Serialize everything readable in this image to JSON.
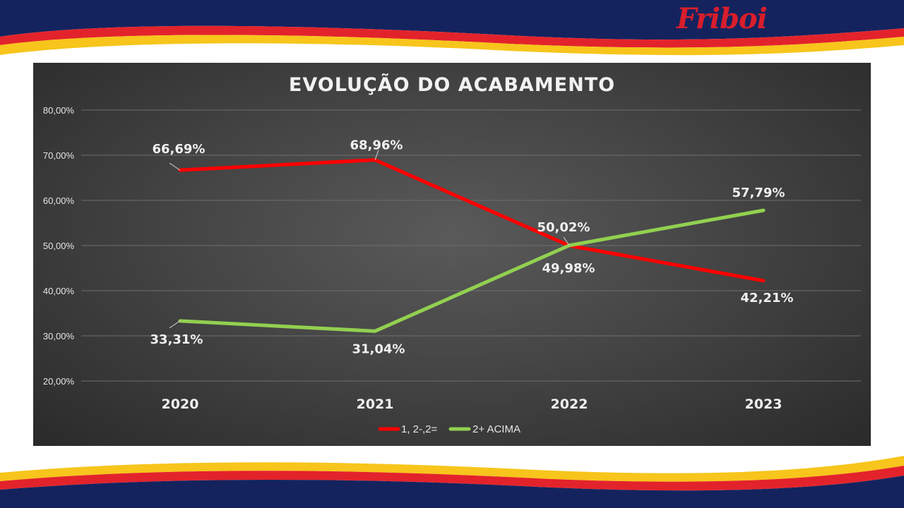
{
  "brand": {
    "name": "Friboi",
    "color": "#d81e2c"
  },
  "colors": {
    "navy": "#14235e",
    "red": "#e3232b",
    "yellow": "#f7c51b"
  },
  "chart_data": {
    "type": "line",
    "title": "EVOLUÇÃO DO ACABAMENTO",
    "categories": [
      "2020",
      "2021",
      "2022",
      "2023"
    ],
    "ylim": [
      20,
      80
    ],
    "yticks": [
      20,
      30,
      40,
      50,
      60,
      70,
      80
    ],
    "ytick_labels": [
      "20,00%",
      "30,00%",
      "40,00%",
      "50,00%",
      "60,00%",
      "70,00%",
      "80,00%"
    ],
    "grid": true,
    "legend_position": "bottom",
    "series": [
      {
        "name": "1, 2-,2=",
        "color": "#ff0000",
        "values": [
          66.69,
          68.96,
          49.98,
          42.21
        ],
        "labels": [
          "66,69%",
          "68,96%",
          "49,98%",
          "42,21%"
        ]
      },
      {
        "name": "2+ ACIMA",
        "color": "#92d050",
        "values": [
          33.31,
          31.04,
          50.02,
          57.79
        ],
        "labels": [
          "33,31%",
          "31,04%",
          "50,02%",
          "57,79%"
        ]
      }
    ]
  }
}
